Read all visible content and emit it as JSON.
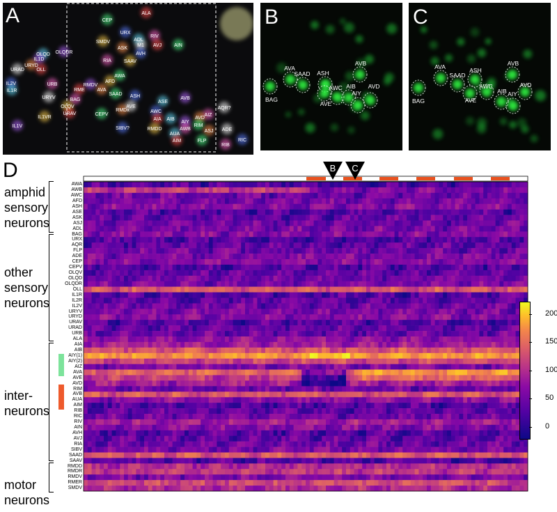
{
  "panels": {
    "a": {
      "letter": "A"
    },
    "b": {
      "letter": "B"
    },
    "c": {
      "letter": "C"
    },
    "d": {
      "letter": "D"
    }
  },
  "panel_a_labels": [
    "ALA",
    "CEP",
    "URX",
    "RIV",
    "SMDV",
    "ADL",
    "OLQDR",
    "ASK",
    "M1",
    "AVJ",
    "AIN",
    "AVH",
    "RIA",
    "SAAV",
    "OLQD",
    "IL1D",
    "URYD",
    "URAD",
    "OLL",
    "AWA",
    "IL2V",
    "URB",
    "AFD",
    "IL1R",
    "RMDV",
    "AVA",
    "URYV",
    "RME",
    "SAAD",
    "ASH",
    "BAG",
    "OLQV",
    "ASE",
    "AVB",
    "RMDx",
    "AVE",
    "URAV",
    "CEPV",
    "AWC",
    "AIZ",
    "IL1VR",
    "AIB",
    "AIY",
    "AVD",
    "AQR?",
    "AIA",
    "RIM",
    "SIBV?",
    "AWB",
    "RMDD",
    "AUA",
    "IL1V",
    "ASJ",
    "ADE",
    "AIM",
    "FLP",
    "RIC",
    "RIB"
  ],
  "panel_b_labels": [
    "AVA",
    "SAAD",
    "ASH",
    "AVB",
    "BAG",
    "AWC",
    "AIB",
    "AVD",
    "AVE",
    "AIY"
  ],
  "panel_c_labels": [
    "AVA",
    "SAAD",
    "ASH",
    "AVB",
    "BAG",
    "AWC",
    "AIB",
    "AVD",
    "AVE",
    "AIY"
  ],
  "markers": {
    "b": "B",
    "c": "C"
  },
  "groups": [
    {
      "label": "amphid sensory neurons",
      "lines": [
        "amphid",
        "sensory",
        "neurons"
      ]
    },
    {
      "label": "other sensory neurons",
      "lines": [
        "other",
        "sensory",
        "neurons"
      ]
    },
    {
      "label": "inter- neurons",
      "lines": [
        "inter-",
        "neurons"
      ]
    },
    {
      "label": "motor neurons",
      "lines": [
        "motor",
        "neurons"
      ]
    }
  ],
  "neurons": [
    "AWA",
    "AWB",
    "AWC",
    "AFD",
    "ASH",
    "ASE",
    "ASK",
    "ASJ",
    "ADL",
    "BAG",
    "URX",
    "AQR",
    "FLP",
    "ADE",
    "CEP",
    "CEPV",
    "OLQV",
    "OLQD",
    "OLQDR",
    "OLL",
    "IL1R",
    "IL2R",
    "IL2V",
    "URYV",
    "URYD",
    "URAV",
    "URAD",
    "URB",
    "ALA",
    "AIA",
    "AIB",
    "AIY(1)",
    "AIY(2)",
    "AIZ",
    "AVA",
    "AVE",
    "AVD",
    "RIM",
    "AVB",
    "AUA",
    "AIM",
    "RIB",
    "RIC",
    "RIV",
    "AIN",
    "AVH",
    "AVJ",
    "RIA",
    "SIBV",
    "SAAD",
    "SAAV",
    "RMDD",
    "RMDR",
    "RMDV",
    "RMER",
    "SMDV"
  ],
  "colorbar": {
    "ticks": [
      "200",
      "150",
      "100",
      "50",
      "0"
    ],
    "colormap": [
      "#0d0887",
      "#5302a3",
      "#8b0aa5",
      "#b83289",
      "#db5c68",
      "#f48849",
      "#febd2a",
      "#f0f921"
    ]
  },
  "stimulus_color": "#e8521f",
  "aiy_marker_color": "#7de39b",
  "ava_marker_color": "#ee5a2c"
}
